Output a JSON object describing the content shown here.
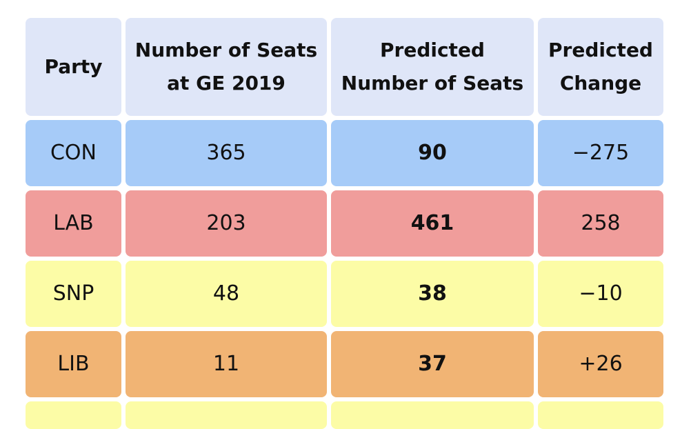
{
  "table": {
    "headers": [
      "Party",
      "Number of Seats\nat GE 2019",
      "Predicted\nNumber of Seats",
      "Predicted\nChange"
    ],
    "rows": [
      {
        "party": "CON",
        "seats_2019": "365",
        "predicted": "90",
        "change": "−275",
        "color": "#a6cbf8"
      },
      {
        "party": "LAB",
        "seats_2019": "203",
        "predicted": "461",
        "change": "258",
        "color": "#f09d9b"
      },
      {
        "party": "SNP",
        "seats_2019": "48",
        "predicted": "38",
        "change": "−10",
        "color": "#fcfca6"
      },
      {
        "party": "LIB",
        "seats_2019": "11",
        "predicted": "37",
        "change": "+26",
        "color": "#f1b474"
      }
    ],
    "partial_row_color": "#fcfca6"
  }
}
